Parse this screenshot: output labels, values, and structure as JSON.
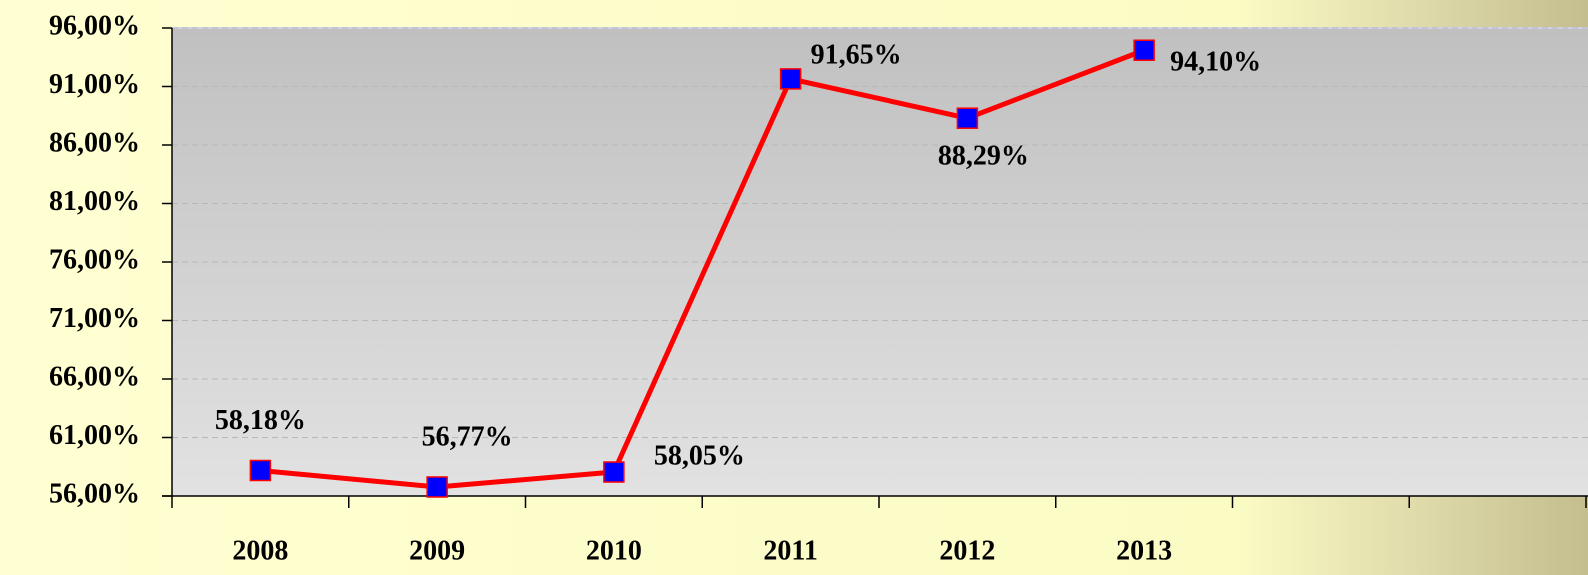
{
  "chart_data": {
    "type": "line",
    "categories": [
      "2008",
      "2009",
      "2010",
      "2011",
      "2012",
      "2013",
      null,
      null
    ],
    "values": [
      58.18,
      56.77,
      58.05,
      91.65,
      88.29,
      94.1,
      null,
      null
    ],
    "value_labels": [
      "58,18%",
      "56,77%",
      "58,05%",
      "91,65%",
      "88,29%",
      "94,10%",
      null,
      null
    ],
    "color": "#ff0000",
    "marker_color": "#0000ff",
    "ylim": [
      56,
      96
    ],
    "yticks": [
      {
        "value": 56,
        "label": "56,00%"
      },
      {
        "value": 61,
        "label": "61,00%"
      },
      {
        "value": 66,
        "label": "66,00%"
      },
      {
        "value": 71,
        "label": "71,00%"
      },
      {
        "value": 76,
        "label": "76,00%"
      },
      {
        "value": 81,
        "label": "81,00%"
      },
      {
        "value": 86,
        "label": "86,00%"
      },
      {
        "value": 91,
        "label": "91,00%"
      },
      {
        "value": 96,
        "label": "96,00%"
      }
    ],
    "grid": true
  }
}
